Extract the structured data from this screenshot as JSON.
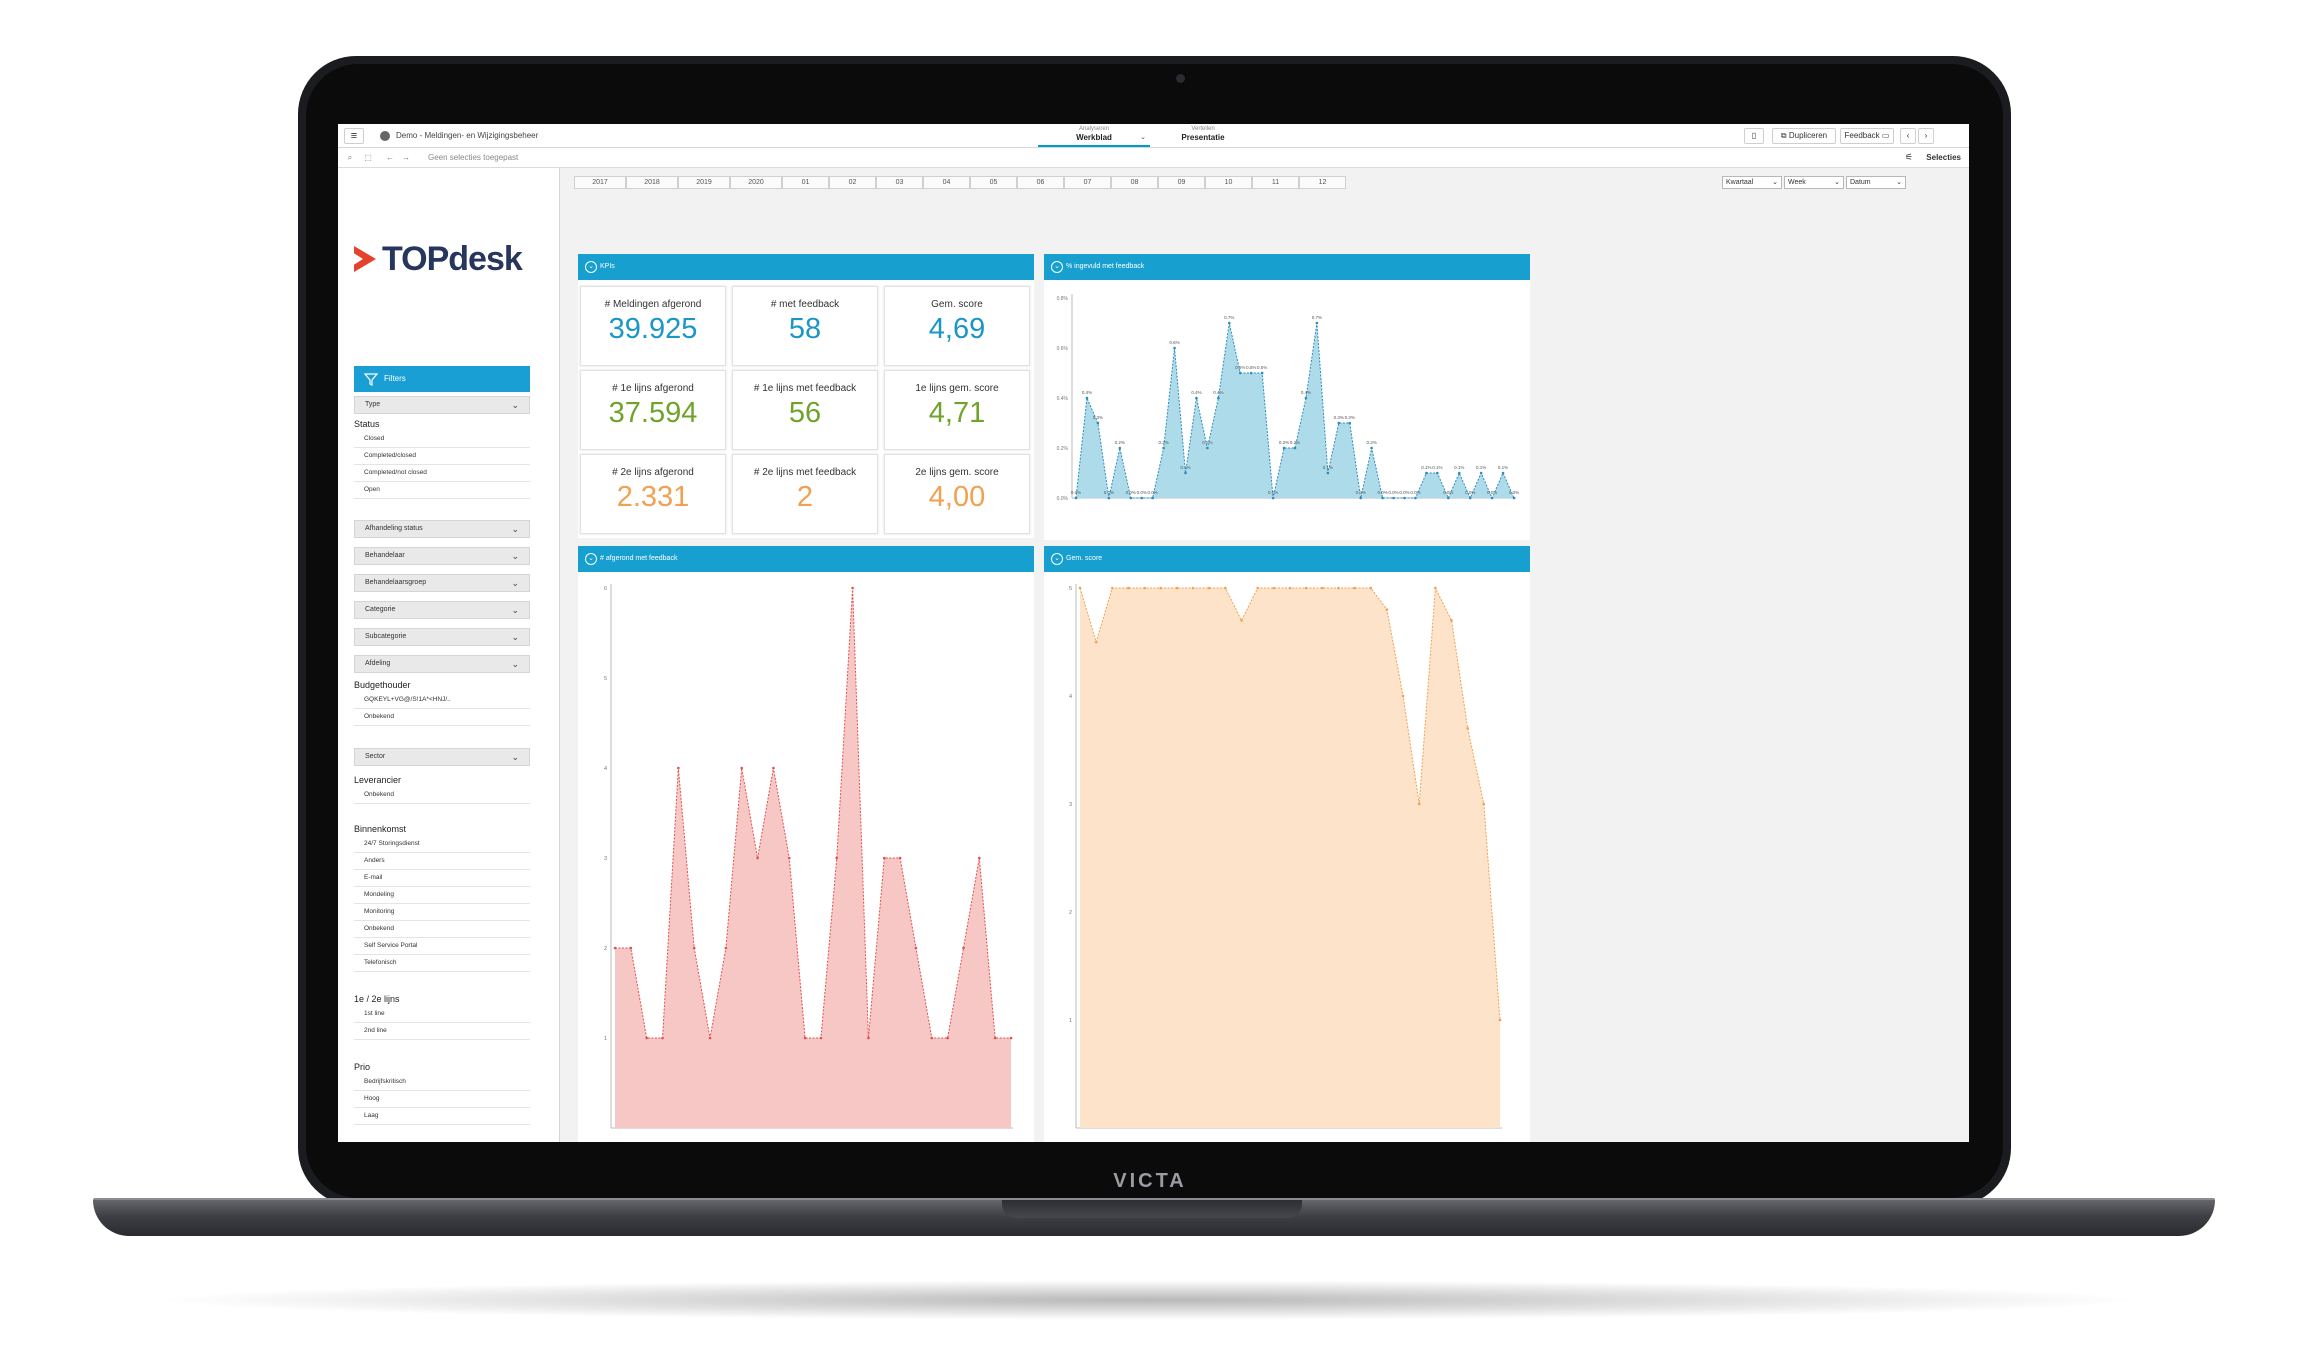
{
  "device": {
    "brand": "VICTA"
  },
  "topbar": {
    "app_title": "Demo - Meldingen- en Wijzigingsbeheer",
    "tab_analyse": {
      "small": "Analyseren",
      "main": "Werkblad"
    },
    "tab_vertellen": {
      "small": "Vertellen",
      "main": "Presentatie"
    },
    "dupliceren_label": "Dupliceren",
    "feedback_label": "Feedback"
  },
  "selection_bar": {
    "no_selections": "Geen selecties toegepast",
    "selecties_label": "Selecties"
  },
  "sidebar": {
    "logo_text": "TOPdesk",
    "filters_label": "Filters",
    "type_label": "Type",
    "status_title": "Status",
    "status_options": [
      "Closed",
      "Completed/closed",
      "Completed/not closed",
      "Open"
    ],
    "dropdowns": [
      "Afhandeling status",
      "Behandelaar",
      "Behandelaarsgroep",
      "Categorie",
      "Subcategorie",
      "Afdeling"
    ],
    "budgethouder_title": "Budgethouder",
    "budgethouder_options": [
      "GQKEYL+VG@/S!1A*<HNJ/..",
      "Onbekend"
    ],
    "sector_label": "Sector",
    "leverancier_title": "Leverancier",
    "leverancier_options": [
      "Onbekend"
    ],
    "binnenkomst_title": "Binnenkomst",
    "binnenkomst_options": [
      "24/7 Storingsdienst",
      "Anders",
      "E-mail",
      "Mondeling",
      "Monitoring",
      "Onbekend",
      "Self Service Portal",
      "Telefonisch"
    ],
    "lijns_title": "1e / 2e lijns",
    "lijns_options": [
      "1st line",
      "2nd line"
    ],
    "prio_title": "Prio",
    "prio_options": [
      "Bedrijfskritisch",
      "Hoog",
      "Laag"
    ]
  },
  "timebar": {
    "years": [
      "2017",
      "2018",
      "2019",
      "2020"
    ],
    "months": [
      "01",
      "02",
      "03",
      "04",
      "05",
      "06",
      "07",
      "08",
      "09",
      "10",
      "11",
      "12"
    ],
    "selects": [
      "Kwartaal",
      "Week",
      "Datum"
    ]
  },
  "kpi_panel": {
    "title": "KPIs",
    "tiles": [
      {
        "label": "# Meldingen afgerond",
        "value": "39.925",
        "color": "#1a96c9"
      },
      {
        "label": "# met feedback",
        "value": "58",
        "color": "#1a96c9"
      },
      {
        "label": "Gem. score",
        "value": "4,69",
        "color": "#1a96c9"
      },
      {
        "label": "# 1e lijns afgerond",
        "value": "37.594",
        "color": "#6fa32a"
      },
      {
        "label": "# 1e lijns met feedback",
        "value": "56",
        "color": "#6fa32a"
      },
      {
        "label": "1e lijns gem. score",
        "value": "4,71",
        "color": "#6fa32a"
      },
      {
        "label": "# 2e lijns afgerond",
        "value": "2.331",
        "color": "#f0a151"
      },
      {
        "label": "# 2e lijns met feedback",
        "value": "2",
        "color": "#f0a151"
      },
      {
        "label": "2e lijns gem. score",
        "value": "4,00",
        "color": "#f0a151"
      }
    ]
  },
  "chart_data": [
    {
      "type": "area",
      "title": "% ingevuld met feedback",
      "ylim": [
        0,
        0.8
      ],
      "yticks": [
        "0.0%",
        "0.2%",
        "0.4%",
        "0.6%",
        "0.8%"
      ],
      "values": [
        0.0,
        0.4,
        0.3,
        0.0,
        0.2,
        0.0,
        0.0,
        0.0,
        0.2,
        0.6,
        0.1,
        0.4,
        0.2,
        0.4,
        0.7,
        0.5,
        0.5,
        0.5,
        0.0,
        0.2,
        0.2,
        0.4,
        0.7,
        0.1,
        0.3,
        0.3,
        0.0,
        0.2,
        0.0,
        0.0,
        0.0,
        0.0,
        0.1,
        0.1,
        0.0,
        0.1,
        0.0,
        0.1,
        0.0,
        0.1,
        0.0
      ],
      "point_labels": [
        "0.0%",
        "0.4%",
        "0.3%",
        "0.0%",
        "0.2%",
        "0.0%",
        "0.0%",
        "0.0%",
        "0.2%",
        "0.6%",
        "0.1%",
        "0.4%",
        "0.2%",
        "0.4%",
        "0.7%",
        "0.5%",
        "0.5%",
        "0.5%",
        "0.0%",
        "0.2%",
        "0.2%",
        "0.4%",
        "0.7%",
        "0.1%",
        "0.3%",
        "0.3%",
        "0.0%",
        "0.2%",
        "0.0%",
        "0.0%",
        "0.0%",
        "0.0%",
        "0.1%",
        "0.1%",
        "0.0%",
        "0.1%",
        "0.0%",
        "0.1%",
        "0.0%",
        "0.1%",
        "0.0%"
      ],
      "color": "#2a8cbf",
      "fill": "#aedbea"
    },
    {
      "type": "area",
      "title": "# afgerond met feedback",
      "ylim": [
        0,
        6
      ],
      "yticks": [
        "1",
        "2",
        "3",
        "4",
        "5",
        "6"
      ],
      "values": [
        2,
        2,
        1,
        1,
        4,
        2,
        1,
        2,
        4,
        3,
        4,
        3,
        1,
        1,
        3,
        6,
        1,
        3,
        3,
        2,
        1,
        1,
        2,
        3,
        1,
        1
      ],
      "color": "#e2504c",
      "fill": "#f7c7c5"
    },
    {
      "type": "area",
      "title": "Gem. score",
      "ylim": [
        0,
        5
      ],
      "yticks": [
        "1",
        "2",
        "3",
        "4",
        "5"
      ],
      "values": [
        5,
        4.5,
        5,
        5,
        5,
        5,
        5,
        5,
        5,
        5,
        4.7,
        5,
        5,
        5,
        5,
        5,
        5,
        5,
        5,
        4.8,
        4,
        3,
        5,
        4.7,
        3.7,
        3,
        1
      ],
      "color": "#f0a151",
      "fill": "#fde3c9"
    }
  ]
}
